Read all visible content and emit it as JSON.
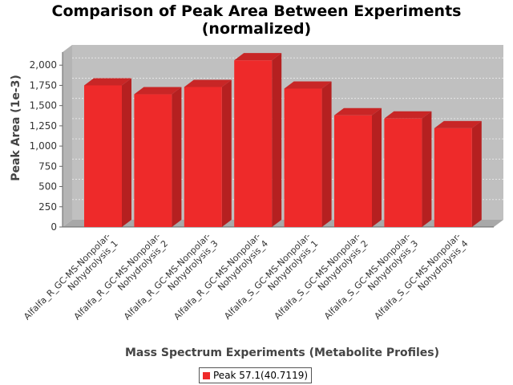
{
  "chart_data": {
    "type": "bar",
    "title_lines": [
      "Comparison of Peak Area Between Experiments",
      "(normalized)"
    ],
    "xlabel": "Mass Spectrum Experiments (Metabolite Profiles)",
    "ylabel": "Peak Area (1e-3)",
    "ylim": [
      0,
      2250
    ],
    "yticks": [
      0,
      250,
      500,
      750,
      1000,
      1250,
      1500,
      1750,
      2000
    ],
    "ytick_labels": [
      "0",
      "250",
      "500",
      "750",
      "1,000",
      "1,250",
      "1,500",
      "1,750",
      "2,000"
    ],
    "categories": [
      "Alfalfa_R_GC-MS-Nonpolar-Nohydrolysis_1",
      "Alfalfa_R_GC-MS-Nonpolar-Nohydrolysis_2",
      "Alfalfa_R_GC-MS-Nonpolar-Nohydrolysis_3",
      "Alfalfa_R_GC-MS-Nonpolar-Nohydrolysis_4",
      "Alfalfa_S_GC-MS-Nonpolar-Nohydrolysis_1",
      "Alfalfa_S_GC-MS-Nonpolar-Nohydrolysis_2",
      "Alfalfa_S_GC-MS-Nonpolar-Nohydrolysis_3",
      "Alfalfa_S_GC-MS-Nonpolar-Nohydrolysis_4"
    ],
    "category_lines": [
      [
        "Alfalfa_R_GC-MS-Nonpolar-",
        "Nohydrolysis_1"
      ],
      [
        "Alfalfa_R_GC-MS-Nonpolar-",
        "Nohydrolysis_2"
      ],
      [
        "Alfalfa_R_GC-MS-Nonpolar-",
        "Nohydrolysis_3"
      ],
      [
        "Alfalfa_R_GC-MS-Nonpolar-",
        "Nohydrolysis_4"
      ],
      [
        "Alfalfa_S_GC-MS-Nonpolar-",
        "Nohydrolysis_1"
      ],
      [
        "Alfalfa_S_GC-MS-Nonpolar-",
        "Nohydrolysis_2"
      ],
      [
        "Alfalfa_S_GC-MS-Nonpolar-",
        "Nohydrolysis_3"
      ],
      [
        "Alfalfa_S_GC-MS-Nonpolar-",
        "Nohydrolysis_4"
      ]
    ],
    "series": [
      {
        "name": "Peak 57.1(40.7119)",
        "values": [
          1750,
          1640,
          1730,
          2060,
          1710,
          1380,
          1340,
          1220
        ]
      }
    ],
    "grid": true,
    "legend_position": "bottom",
    "colors": {
      "bar_front": "#ee2a2a",
      "bar_side": "#b52020",
      "bar_top": "#c82626",
      "plot_back": "#c0c0c0",
      "plot_floor": "#a8a8a8",
      "gridline": "#e6e6e6"
    }
  }
}
